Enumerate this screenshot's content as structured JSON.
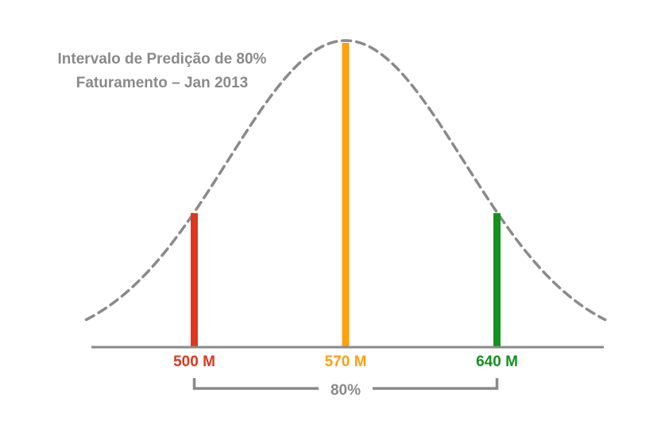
{
  "chart_data": {
    "type": "area",
    "title_line1": "Intervalo de Predição de 80%",
    "title_line2": "Faturamento – Jan 2013",
    "distribution": {
      "mean": 570,
      "interval": [
        500,
        640
      ],
      "confidence_label": "80%"
    },
    "x_range": [
      450,
      690
    ],
    "markers": [
      {
        "name": "lower",
        "value": 500,
        "label": "500 M",
        "color": "#e0361c"
      },
      {
        "name": "mean",
        "value": 570,
        "label": "570 M",
        "color": "#ffa010"
      },
      {
        "name": "upper",
        "value": 640,
        "label": "640 M",
        "color": "#13921f"
      }
    ],
    "colors": {
      "curve": "#8a8a8a",
      "axis": "#8a8a8a",
      "bracket": "#8a8a8a",
      "interval_text": "#8a8a8a"
    }
  }
}
